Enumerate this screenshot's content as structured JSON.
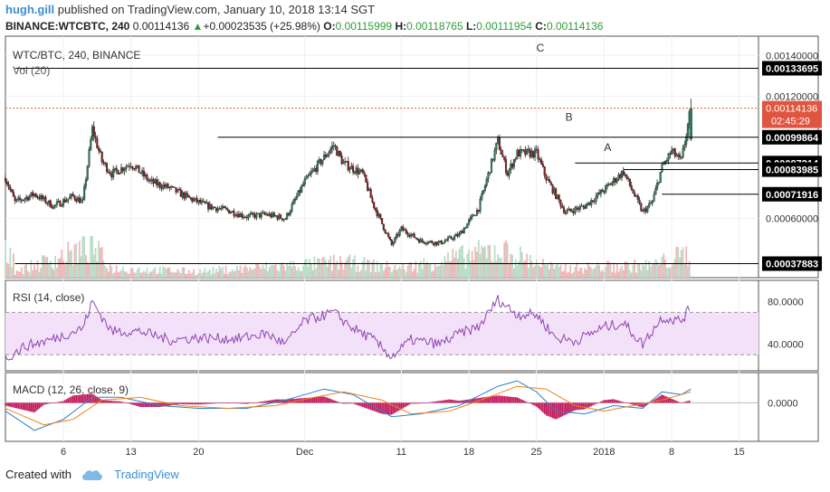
{
  "header": {
    "user": "hugh.gill",
    "published": "published on TradingView.com, January 10, 2018 13:14 SGT",
    "symbol": "BINANCE:WTCBTC, 240",
    "price": "0.00114136",
    "change_arrow": "▲",
    "change": "+0.00023535 (+25.98%)",
    "o_label": "O:",
    "o": "0.00115999",
    "h_label": "H:",
    "h": "0.00118765",
    "l_label": "L:",
    "l": "0.00111954",
    "c_label": "C:",
    "c": "0.00114136"
  },
  "panes": {
    "main_title": "WTC/BTC, 240, BINANCE",
    "vol_title": "Vol (20)",
    "rsi_title": "RSI (14, close)",
    "macd_title": "MACD (12, 26, close, 9)"
  },
  "footer": {
    "created_with": "Created with",
    "brand": "TradingView"
  },
  "colors": {
    "up": "#2f7d5a",
    "down": "#8b1d1d",
    "rsi_line": "#8e44ad",
    "rsi_band": "#f3e1fa",
    "macd_line": "#2a82c9",
    "signal_line": "#f0811a",
    "hist": "#c2185b",
    "last_price_badge": "#e0553f",
    "brand": "#3b8fd1"
  },
  "chart_data": [
    {
      "type": "candlestick",
      "title": "WTC/BTC, 240, BINANCE",
      "x_ticks": [
        "6",
        "13",
        "20",
        "Dec",
        "11",
        "18",
        "25",
        "2018",
        "8",
        "15"
      ],
      "ylim": [
        0.00035,
        0.00145
      ],
      "y_ticks": [
        0.0014,
        0.0012,
        0.0006
      ],
      "y_tick_labels": [
        "0.00140000",
        "0.00120000",
        "0.00060000"
      ],
      "price_levels": [
        {
          "label": "0.00133695",
          "value": 0.00133695,
          "start": "2017-11-01"
        },
        {
          "label": "0.00099864",
          "value": 0.00099864,
          "start": "2017-11-22"
        },
        {
          "label": "0.00087214",
          "value": 0.00087214,
          "start": "2017-12-29"
        },
        {
          "label": "0.00083985",
          "value": 0.00083985,
          "start": "2018-01-03"
        },
        {
          "label": "0.00071916",
          "value": 0.00071916,
          "start": "2018-01-07"
        },
        {
          "label": "0.00037883",
          "value": 0.00037883,
          "start": "2017-11-01"
        }
      ],
      "last_price": {
        "value": 0.00114136,
        "label": "0.00114136",
        "countdown": "02:45:29"
      },
      "annotations": [
        {
          "text": "A",
          "date": "2018-01-01",
          "price": 0.00093
        },
        {
          "text": "B",
          "date": "2017-12-28",
          "price": 0.00108
        },
        {
          "text": "C",
          "date": "2017-12-25",
          "price": 0.00142
        }
      ],
      "series": [
        {
          "name": "Price",
          "points": [
            {
              "date": "2017-10-31",
              "price": 0.0008
            },
            {
              "date": "2017-11-01",
              "price": 0.00068
            },
            {
              "date": "2017-11-03",
              "price": 0.00072
            },
            {
              "date": "2017-11-05",
              "price": 0.00066
            },
            {
              "date": "2017-11-07",
              "price": 0.00071
            },
            {
              "date": "2017-11-08",
              "price": 0.00068
            },
            {
              "date": "2017-11-09",
              "price": 0.00104
            },
            {
              "date": "2017-11-10",
              "price": 0.00088
            },
            {
              "date": "2017-11-11",
              "price": 0.00082
            },
            {
              "date": "2017-11-13",
              "price": 0.00087
            },
            {
              "date": "2017-11-15",
              "price": 0.00078
            },
            {
              "date": "2017-11-17",
              "price": 0.00075
            },
            {
              "date": "2017-11-19",
              "price": 0.0007
            },
            {
              "date": "2017-11-21",
              "price": 0.00066
            },
            {
              "date": "2017-11-23",
              "price": 0.00064
            },
            {
              "date": "2017-11-25",
              "price": 0.00061
            },
            {
              "date": "2017-11-27",
              "price": 0.00062
            },
            {
              "date": "2017-11-29",
              "price": 0.0006
            },
            {
              "date": "2017-12-01",
              "price": 0.00078
            },
            {
              "date": "2017-12-04",
              "price": 0.00096
            },
            {
              "date": "2017-12-05",
              "price": 0.00087
            },
            {
              "date": "2017-12-07",
              "price": 0.00082
            },
            {
              "date": "2017-12-08",
              "price": 0.00068
            },
            {
              "date": "2017-12-10",
              "price": 0.00047
            },
            {
              "date": "2017-12-11",
              "price": 0.00055
            },
            {
              "date": "2017-12-13",
              "price": 0.00049
            },
            {
              "date": "2017-12-15",
              "price": 0.00048
            },
            {
              "date": "2017-12-17",
              "price": 0.00052
            },
            {
              "date": "2017-12-19",
              "price": 0.00065
            },
            {
              "date": "2017-12-21",
              "price": 0.00098
            },
            {
              "date": "2017-12-22",
              "price": 0.00082
            },
            {
              "date": "2017-12-23",
              "price": 0.00092
            },
            {
              "date": "2017-12-25",
              "price": 0.00092
            },
            {
              "date": "2017-12-26",
              "price": 0.0008
            },
            {
              "date": "2017-12-28",
              "price": 0.00063
            },
            {
              "date": "2017-12-30",
              "price": 0.00066
            },
            {
              "date": "2018-01-01",
              "price": 0.00074
            },
            {
              "date": "2018-01-03",
              "price": 0.00083
            },
            {
              "date": "2018-01-05",
              "price": 0.00063
            },
            {
              "date": "2018-01-06",
              "price": 0.00068
            },
            {
              "date": "2018-01-07",
              "price": 0.00085
            },
            {
              "date": "2018-01-08",
              "price": 0.00093
            },
            {
              "date": "2018-01-09",
              "price": 0.00088
            },
            {
              "date": "2018-01-10",
              "price": 0.00114
            }
          ]
        }
      ]
    },
    {
      "type": "bar",
      "title": "Vol (20)",
      "series": [
        {
          "points": [
            {
              "date": "2017-11-01",
              "volume": 0.2
            },
            {
              "date": "2017-11-09",
              "volume": 1.0
            },
            {
              "date": "2017-11-11",
              "volume": 0.3
            },
            {
              "date": "2017-11-20",
              "volume": 0.2
            },
            {
              "date": "2017-11-30",
              "volume": 0.4
            },
            {
              "date": "2017-12-05",
              "volume": 0.5
            },
            {
              "date": "2017-12-11",
              "volume": 0.3
            },
            {
              "date": "2017-12-21",
              "volume": 0.9
            },
            {
              "date": "2017-12-27",
              "volume": 0.3
            },
            {
              "date": "2018-01-06",
              "volume": 0.4
            },
            {
              "date": "2018-01-10",
              "volume": 0.8
            }
          ]
        }
      ]
    },
    {
      "type": "line",
      "title": "RSI (14, close)",
      "ylim": [
        20,
        95
      ],
      "y_ticks": [
        80,
        40
      ],
      "y_tick_labels": [
        "80.0000",
        "40.0000"
      ],
      "bands": [
        70,
        30
      ],
      "series": [
        {
          "points": [
            {
              "date": "2017-10-31",
              "rsi": 26
            },
            {
              "date": "2017-11-02",
              "rsi": 38
            },
            {
              "date": "2017-11-05",
              "rsi": 45
            },
            {
              "date": "2017-11-08",
              "rsi": 55
            },
            {
              "date": "2017-11-09",
              "rsi": 80
            },
            {
              "date": "2017-11-11",
              "rsi": 52
            },
            {
              "date": "2017-11-14",
              "rsi": 52
            },
            {
              "date": "2017-11-17",
              "rsi": 44
            },
            {
              "date": "2017-11-20",
              "rsi": 46
            },
            {
              "date": "2017-11-24",
              "rsi": 45
            },
            {
              "date": "2017-11-27",
              "rsi": 50
            },
            {
              "date": "2017-11-29",
              "rsi": 40
            },
            {
              "date": "2017-12-01",
              "rsi": 62
            },
            {
              "date": "2017-12-04",
              "rsi": 70
            },
            {
              "date": "2017-12-06",
              "rsi": 55
            },
            {
              "date": "2017-12-08",
              "rsi": 45
            },
            {
              "date": "2017-12-10",
              "rsi": 28
            },
            {
              "date": "2017-12-12",
              "rsi": 44
            },
            {
              "date": "2017-12-15",
              "rsi": 40
            },
            {
              "date": "2017-12-17",
              "rsi": 50
            },
            {
              "date": "2017-12-19",
              "rsi": 56
            },
            {
              "date": "2017-12-21",
              "rsi": 82
            },
            {
              "date": "2017-12-23",
              "rsi": 68
            },
            {
              "date": "2017-12-25",
              "rsi": 68
            },
            {
              "date": "2017-12-27",
              "rsi": 46
            },
            {
              "date": "2017-12-29",
              "rsi": 43
            },
            {
              "date": "2018-01-01",
              "rsi": 56
            },
            {
              "date": "2018-01-03",
              "rsi": 60
            },
            {
              "date": "2018-01-05",
              "rsi": 40
            },
            {
              "date": "2018-01-07",
              "rsi": 65
            },
            {
              "date": "2018-01-09",
              "rsi": 62
            },
            {
              "date": "2018-01-10",
              "rsi": 75
            }
          ]
        }
      ]
    },
    {
      "type": "line",
      "title": "MACD (12, 26, close, 9)",
      "ylim": [
        -0.00012,
        9e-05
      ],
      "y_ticks": [
        0
      ],
      "y_tick_labels": [
        "0.0000"
      ],
      "series": [
        {
          "points": [
            {
              "date": "2017-10-31",
              "value": -3e-05
            },
            {
              "date": "2017-11-03",
              "value": -0.0001
            },
            {
              "date": "2017-11-06",
              "value": -6e-05
            },
            {
              "date": "2017-11-09",
              "value": 2e-05
            },
            {
              "date": "2017-11-12",
              "value": 2e-05
            },
            {
              "date": "2017-11-16",
              "value": -1e-05
            },
            {
              "date": "2017-11-20",
              "value": -2e-05
            },
            {
              "date": "2017-11-25",
              "value": -2e-05
            },
            {
              "date": "2017-11-29",
              "value": 1e-05
            },
            {
              "date": "2017-12-03",
              "value": 5e-05
            },
            {
              "date": "2017-12-06",
              "value": 3e-05
            },
            {
              "date": "2017-12-10",
              "value": -5e-05
            },
            {
              "date": "2017-12-13",
              "value": -4e-05
            },
            {
              "date": "2017-12-17",
              "value": -1e-05
            },
            {
              "date": "2017-12-21",
              "value": 6e-05
            },
            {
              "date": "2017-12-23",
              "value": 8e-05
            },
            {
              "date": "2017-12-25",
              "value": 4e-05
            },
            {
              "date": "2017-12-27",
              "value": -3e-05
            },
            {
              "date": "2017-12-30",
              "value": -4e-05
            },
            {
              "date": "2018-01-02",
              "value": -1e-05
            },
            {
              "date": "2018-01-05",
              "value": -2e-05
            },
            {
              "date": "2018-01-07",
              "value": 4e-05
            },
            {
              "date": "2018-01-09",
              "value": 3e-05
            },
            {
              "date": "2018-01-10",
              "value": 5e-05
            }
          ]
        },
        {
          "points": [
            {
              "date": "2017-10-31",
              "value": -2e-05
            },
            {
              "date": "2017-11-04",
              "value": -8e-05
            },
            {
              "date": "2017-11-07",
              "value": -6e-05
            },
            {
              "date": "2017-11-10",
              "value": 1e-05
            },
            {
              "date": "2017-11-14",
              "value": 2e-05
            },
            {
              "date": "2017-11-18",
              "value": -1e-05
            },
            {
              "date": "2017-11-23",
              "value": -2e-05
            },
            {
              "date": "2017-11-28",
              "value": -1e-05
            },
            {
              "date": "2017-12-02",
              "value": 2e-05
            },
            {
              "date": "2017-12-05",
              "value": 4e-05
            },
            {
              "date": "2017-12-09",
              "value": 1e-05
            },
            {
              "date": "2017-12-12",
              "value": -4e-05
            },
            {
              "date": "2017-12-16",
              "value": -3e-05
            },
            {
              "date": "2017-12-20",
              "value": 2e-05
            },
            {
              "date": "2017-12-23",
              "value": 6e-05
            },
            {
              "date": "2017-12-26",
              "value": 5e-05
            },
            {
              "date": "2017-12-29",
              "value": -1e-05
            },
            {
              "date": "2018-01-01",
              "value": -3e-05
            },
            {
              "date": "2018-01-04",
              "value": -1e-05
            },
            {
              "date": "2018-01-07",
              "value": 1e-05
            },
            {
              "date": "2018-01-09",
              "value": 3e-05
            },
            {
              "date": "2018-01-10",
              "value": 4e-05
            }
          ]
        }
      ]
    }
  ]
}
